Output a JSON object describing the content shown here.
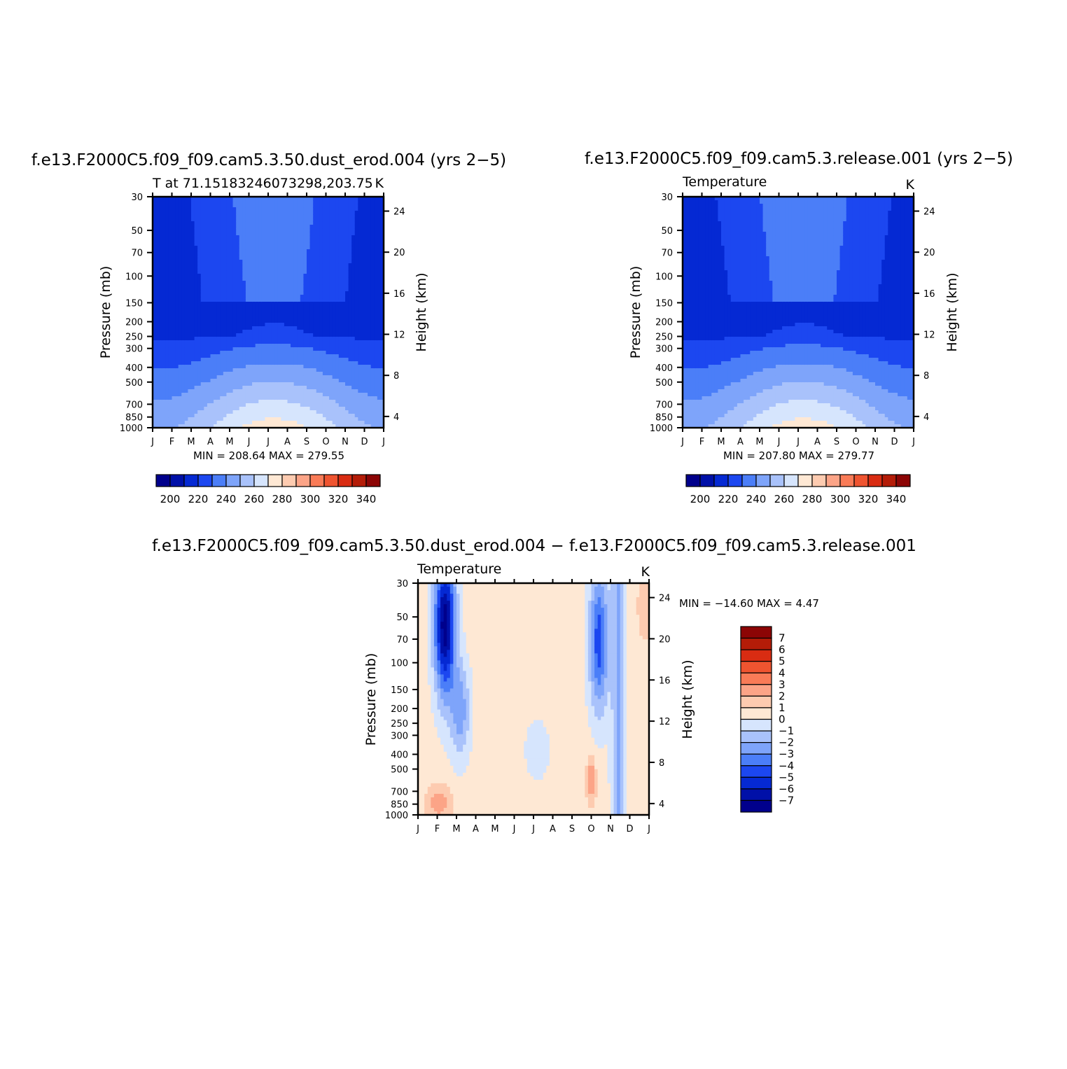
{
  "months": [
    "J",
    "F",
    "M",
    "A",
    "M",
    "J",
    "J",
    "A",
    "S",
    "O",
    "N",
    "D",
    "J"
  ],
  "common": {
    "ylabel": "Pressure (mb)",
    "y2label": "Height (km)",
    "units": "K",
    "pressure_ticks": [
      30,
      50,
      70,
      100,
      150,
      200,
      250,
      300,
      400,
      500,
      700,
      850,
      1000
    ],
    "height_ticks": [
      4,
      8,
      12,
      16,
      20,
      24
    ]
  },
  "chart_data": [
    {
      "type": "heatmap",
      "title": "f.e13.F2000C5.f09_f09.cam5.3.50.dust_erod.004 (yrs 2−5)",
      "subtitle": "T at 71.15183246073298,203.75",
      "minmax": "MIN = 208.64  MAX = 279.55",
      "min": 208.64,
      "max": 279.55,
      "levels": [
        200,
        210,
        220,
        230,
        240,
        250,
        260,
        270,
        280,
        290,
        300,
        310,
        320,
        330,
        340
      ],
      "colorbar_labels": [
        200,
        220,
        240,
        260,
        280,
        300,
        320,
        340
      ],
      "x_ticks": [
        "J",
        "F",
        "M",
        "A",
        "M",
        "J",
        "J",
        "A",
        "S",
        "O",
        "N",
        "D",
        "J"
      ],
      "pressure_ticks": [
        30,
        50,
        70,
        100,
        150,
        200,
        250,
        300,
        400,
        500,
        700,
        850,
        1000
      ],
      "height_ticks": [
        4,
        8,
        12,
        16,
        20,
        24
      ]
    },
    {
      "type": "heatmap",
      "title": "f.e13.F2000C5.f09_f09.cam5.3.release.001 (yrs 2−5)",
      "subtitle": "Temperature",
      "minmax": "MIN = 207.80  MAX = 279.77",
      "min": 207.8,
      "max": 279.77,
      "levels": [
        200,
        210,
        220,
        230,
        240,
        250,
        260,
        270,
        280,
        290,
        300,
        310,
        320,
        330,
        340
      ],
      "colorbar_labels": [
        200,
        220,
        240,
        260,
        280,
        300,
        320,
        340
      ],
      "x_ticks": [
        "J",
        "F",
        "M",
        "A",
        "M",
        "J",
        "J",
        "A",
        "S",
        "O",
        "N",
        "D",
        "J"
      ],
      "pressure_ticks": [
        30,
        50,
        70,
        100,
        150,
        200,
        250,
        300,
        400,
        500,
        700,
        850,
        1000
      ],
      "height_ticks": [
        4,
        8,
        12,
        16,
        20,
        24
      ]
    },
    {
      "type": "heatmap",
      "title": "f.e13.F2000C5.f09_f09.cam5.3.50.dust_erod.004 − f.e13.F2000C5.f09_f09.cam5.3.release.001",
      "subtitle": "Temperature",
      "minmax": "MIN = −14.60  MAX =    4.47",
      "min": -14.6,
      "max": 4.47,
      "levels": [
        -7,
        -6,
        -5,
        -4,
        -3,
        -2,
        -1,
        0,
        1,
        2,
        3,
        4,
        5,
        6,
        7
      ],
      "colorbar_labels": [
        "7",
        "6",
        "5",
        "4",
        "3",
        "2",
        "1",
        "0",
        "−1",
        "−2",
        "−3",
        "−4",
        "−5",
        "−6",
        "−7"
      ],
      "x_ticks": [
        "J",
        "F",
        "M",
        "A",
        "M",
        "J",
        "J",
        "A",
        "S",
        "O",
        "N",
        "D",
        "J"
      ],
      "pressure_ticks": [
        30,
        50,
        70,
        100,
        150,
        200,
        250,
        300,
        400,
        500,
        700,
        850,
        1000
      ],
      "height_ticks": [
        4,
        8,
        12,
        16,
        20,
        24
      ]
    }
  ],
  "palette": [
    "#00008c",
    "#0010a8",
    "#0529d3",
    "#1c47f0",
    "#4b7ef8",
    "#7ea4fa",
    "#a9c2fb",
    "#d6e5fd",
    "#fee8d4",
    "#fdcbb0",
    "#fca487",
    "#f97b57",
    "#ef5430",
    "#d92c12",
    "#b41c08",
    "#8c0505"
  ]
}
